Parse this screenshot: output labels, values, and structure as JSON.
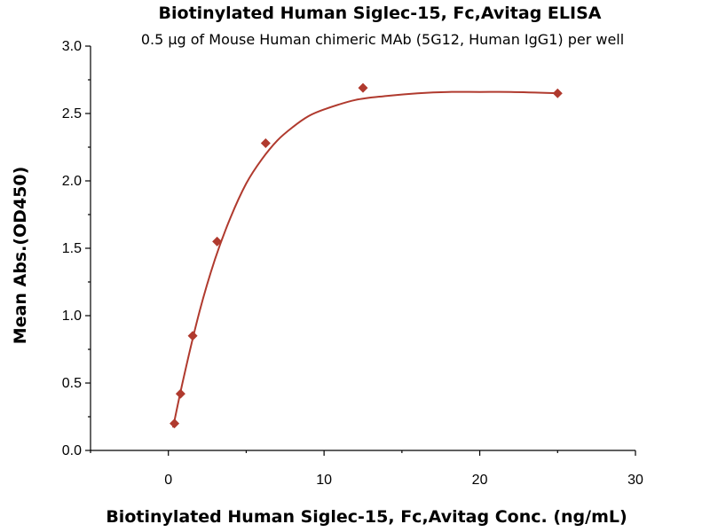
{
  "chart_data": {
    "type": "scatter",
    "title": "Biotinylated Human Siglec-15, Fc,Avitag ELISA",
    "subtitle": "0.5 μg of Mouse Human chimeric MAb (5G12, Human IgG1) per well",
    "xlabel": "Biotinylated Human Siglec-15, Fc,Avitag Conc. (ng/mL)",
    "ylabel": "Mean Abs.(OD450)",
    "xlim": [
      -5,
      30
    ],
    "ylim": [
      0,
      3.0
    ],
    "x_ticks": [
      0,
      10,
      20,
      30
    ],
    "x_tick_labels": [
      "0",
      "10",
      "20",
      "30"
    ],
    "y_ticks": [
      0,
      0.5,
      1.0,
      1.5,
      2.0,
      2.5,
      3.0
    ],
    "y_tick_labels": [
      "0.0",
      "0.5",
      "1.0",
      "1.5",
      "2.0",
      "2.5",
      "3.0"
    ],
    "grid": false,
    "color": "#b03a2e",
    "series": [
      {
        "x": [
          0.39,
          0.78,
          1.56,
          3.13,
          6.25,
          12.5,
          25
        ],
        "y": [
          0.2,
          0.42,
          0.85,
          1.55,
          2.28,
          2.69,
          2.65
        ],
        "fit": {
          "x": [
            0.3,
            1,
            2,
            3,
            4,
            5,
            6,
            7,
            8,
            9,
            10,
            12,
            14,
            16,
            18,
            20,
            22,
            25
          ],
          "y": [
            0.17,
            0.55,
            1.03,
            1.42,
            1.73,
            1.98,
            2.16,
            2.3,
            2.4,
            2.48,
            2.53,
            2.6,
            2.63,
            2.65,
            2.66,
            2.66,
            2.66,
            2.65
          ]
        }
      }
    ]
  }
}
